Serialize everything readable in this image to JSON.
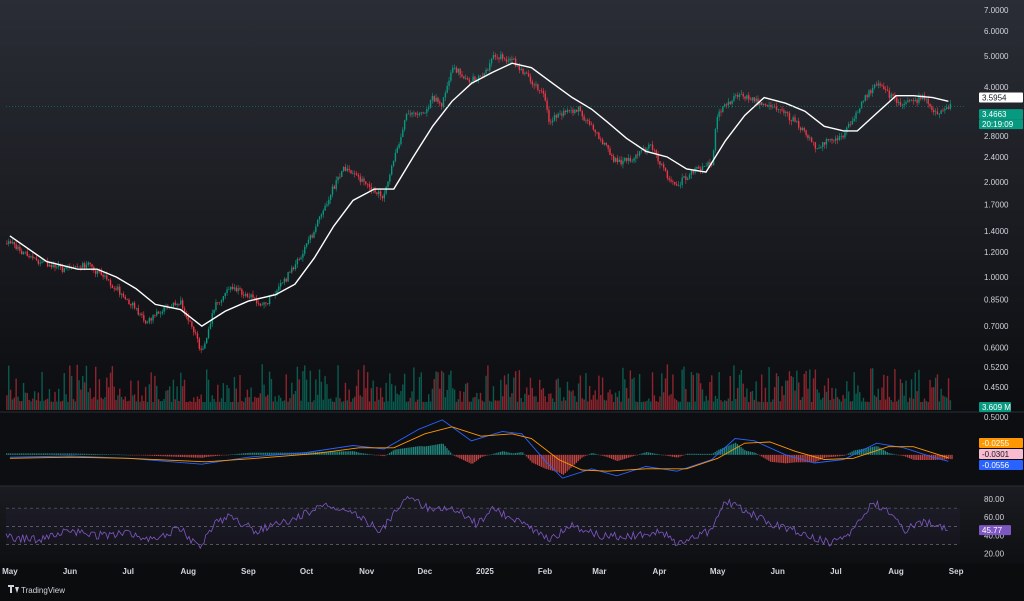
{
  "chart_data": [
    {
      "type": "candlestick",
      "panel": "price",
      "scale": "log",
      "ylim": [
        0.38,
        7.0
      ],
      "yticks": [
        "7.0000",
        "6.0000",
        "5.0000",
        "4.0000",
        "2.8000",
        "2.4000",
        "2.0000",
        "1.7000",
        "1.4000",
        "1.2000",
        "1.0000",
        "0.8500",
        "0.7000",
        "0.6000",
        "0.5200",
        "0.4500",
        "0.3900"
      ],
      "ytick_values": [
        7.0,
        6.0,
        5.0,
        4.0,
        2.8,
        2.4,
        2.0,
        1.7,
        1.4,
        1.2,
        1.0,
        0.85,
        0.7,
        0.6,
        0.52,
        0.45,
        0.39
      ],
      "x_months": [
        "May",
        "Jun",
        "Jul",
        "Aug",
        "Sep",
        "Oct",
        "Nov",
        "Dec",
        "2025",
        "Feb",
        "Mar",
        "Apr",
        "May",
        "Jun",
        "Jul",
        "Aug",
        "Sep"
      ],
      "close_path": [
        [
          "2024-05-01",
          1.28
        ],
        [
          "2024-05-15",
          1.12
        ],
        [
          "2024-06-01",
          1.05
        ],
        [
          "2024-06-10",
          1.1
        ],
        [
          "2024-06-20",
          0.98
        ],
        [
          "2024-07-01",
          0.85
        ],
        [
          "2024-07-10",
          0.72
        ],
        [
          "2024-07-20",
          0.8
        ],
        [
          "2024-07-28",
          0.83
        ],
        [
          "2024-08-05",
          0.65
        ],
        [
          "2024-08-08",
          0.57
        ],
        [
          "2024-08-15",
          0.82
        ],
        [
          "2024-08-22",
          0.92
        ],
        [
          "2024-09-01",
          0.88
        ],
        [
          "2024-09-08",
          0.8
        ],
        [
          "2024-09-20",
          0.98
        ],
        [
          "2024-10-01",
          1.25
        ],
        [
          "2024-10-10",
          1.65
        ],
        [
          "2024-10-20",
          2.25
        ],
        [
          "2024-10-28",
          2.05
        ],
        [
          "2024-11-05",
          1.9
        ],
        [
          "2024-11-10",
          1.8
        ],
        [
          "2024-11-15",
          2.35
        ],
        [
          "2024-11-22",
          3.3
        ],
        [
          "2024-12-01",
          3.3
        ],
        [
          "2024-12-05",
          3.7
        ],
        [
          "2024-12-10",
          3.5
        ],
        [
          "2024-12-15",
          4.6
        ],
        [
          "2024-12-25",
          4.2
        ],
        [
          "2025-01-01",
          4.4
        ],
        [
          "2025-01-05",
          5.0
        ],
        [
          "2025-01-15",
          4.9
        ],
        [
          "2025-01-22",
          4.4
        ],
        [
          "2025-02-01",
          3.7
        ],
        [
          "2025-02-03",
          3.1
        ],
        [
          "2025-02-10",
          3.3
        ],
        [
          "2025-02-18",
          3.4
        ],
        [
          "2025-02-28",
          2.8
        ],
        [
          "2025-03-10",
          2.3
        ],
        [
          "2025-03-20",
          2.4
        ],
        [
          "2025-03-28",
          2.6
        ],
        [
          "2025-04-05",
          2.1
        ],
        [
          "2025-04-10",
          1.95
        ],
        [
          "2025-04-20",
          2.2
        ],
        [
          "2025-04-28",
          2.3
        ],
        [
          "2025-05-01",
          3.3
        ],
        [
          "2025-05-12",
          3.8
        ],
        [
          "2025-05-20",
          3.6
        ],
        [
          "2025-06-01",
          3.4
        ],
        [
          "2025-06-10",
          3.1
        ],
        [
          "2025-06-20",
          2.6
        ],
        [
          "2025-06-28",
          2.7
        ],
        [
          "2025-07-05",
          2.8
        ],
        [
          "2025-07-15",
          3.6
        ],
        [
          "2025-07-22",
          4.1
        ],
        [
          "2025-07-28",
          3.8
        ],
        [
          "2025-08-05",
          3.5
        ],
        [
          "2025-08-15",
          3.7
        ],
        [
          "2025-08-22",
          3.3
        ],
        [
          "2025-08-28",
          3.45
        ]
      ],
      "ma_path": [
        [
          "2024-05-01",
          1.35
        ],
        [
          "2024-05-20",
          1.12
        ],
        [
          "2024-06-05",
          1.06
        ],
        [
          "2024-06-15",
          1.06
        ],
        [
          "2024-06-25",
          1.0
        ],
        [
          "2024-07-05",
          0.92
        ],
        [
          "2024-07-15",
          0.82
        ],
        [
          "2024-07-28",
          0.79
        ],
        [
          "2024-08-08",
          0.7
        ],
        [
          "2024-08-20",
          0.78
        ],
        [
          "2024-09-01",
          0.84
        ],
        [
          "2024-09-15",
          0.88
        ],
        [
          "2024-09-25",
          0.95
        ],
        [
          "2024-10-05",
          1.15
        ],
        [
          "2024-10-15",
          1.45
        ],
        [
          "2024-10-25",
          1.75
        ],
        [
          "2024-11-05",
          1.9
        ],
        [
          "2024-11-15",
          1.9
        ],
        [
          "2024-11-25",
          2.4
        ],
        [
          "2024-12-05",
          3.0
        ],
        [
          "2024-12-15",
          3.6
        ],
        [
          "2024-12-25",
          4.1
        ],
        [
          "2025-01-05",
          4.45
        ],
        [
          "2025-01-15",
          4.75
        ],
        [
          "2025-01-25",
          4.6
        ],
        [
          "2025-02-05",
          4.1
        ],
        [
          "2025-02-15",
          3.7
        ],
        [
          "2025-02-25",
          3.4
        ],
        [
          "2025-03-05",
          3.1
        ],
        [
          "2025-03-15",
          2.75
        ],
        [
          "2025-03-25",
          2.5
        ],
        [
          "2025-04-05",
          2.4
        ],
        [
          "2025-04-15",
          2.2
        ],
        [
          "2025-04-25",
          2.15
        ],
        [
          "2025-05-05",
          2.7
        ],
        [
          "2025-05-15",
          3.25
        ],
        [
          "2025-05-25",
          3.7
        ],
        [
          "2025-06-05",
          3.55
        ],
        [
          "2025-06-15",
          3.35
        ],
        [
          "2025-06-25",
          3.0
        ],
        [
          "2025-07-05",
          2.9
        ],
        [
          "2025-07-12",
          2.9
        ],
        [
          "2025-07-22",
          3.3
        ],
        [
          "2025-08-01",
          3.75
        ],
        [
          "2025-08-10",
          3.75
        ],
        [
          "2025-08-20",
          3.7
        ],
        [
          "2025-08-28",
          3.6
        ]
      ],
      "price_line": 3.4663,
      "last_price": "3.4663",
      "last_price_color": "#089981",
      "countdown": "20:19:09",
      "ma_value": "3.5954",
      "ma_color": "#ffffff",
      "volume_badge": "3.609 M",
      "volume_badge_color": "#089981",
      "up_color": "#089981",
      "down_color": "#f23645"
    },
    {
      "type": "line",
      "panel": "macd",
      "yticks": [
        "0.5000"
      ],
      "ytick_values": [
        0.5
      ],
      "series": [
        {
          "key": "macd",
          "color": "#2962ff",
          "points": [
            [
              "2024-05-01",
              -0.02
            ],
            [
              "2024-06-01",
              -0.01
            ],
            [
              "2024-07-01",
              -0.03
            ],
            [
              "2024-08-08",
              -0.08
            ],
            [
              "2024-09-01",
              -0.02
            ],
            [
              "2024-10-01",
              0.02
            ],
            [
              "2024-10-25",
              0.08
            ],
            [
              "2024-11-10",
              0.05
            ],
            [
              "2024-11-28",
              0.22
            ],
            [
              "2024-12-10",
              0.3
            ],
            [
              "2024-12-25",
              0.12
            ],
            [
              "2025-01-10",
              0.2
            ],
            [
              "2025-01-20",
              0.18
            ],
            [
              "2025-02-01",
              -0.05
            ],
            [
              "2025-02-10",
              -0.2
            ],
            [
              "2025-02-25",
              -0.12
            ],
            [
              "2025-03-10",
              -0.18
            ],
            [
              "2025-03-25",
              -0.1
            ],
            [
              "2025-04-10",
              -0.14
            ],
            [
              "2025-04-28",
              -0.04
            ],
            [
              "2025-05-10",
              0.14
            ],
            [
              "2025-05-20",
              0.12
            ],
            [
              "2025-06-05",
              0.0
            ],
            [
              "2025-06-20",
              -0.07
            ],
            [
              "2025-07-05",
              -0.04
            ],
            [
              "2025-07-22",
              0.1
            ],
            [
              "2025-08-05",
              0.06
            ],
            [
              "2025-08-20",
              -0.02
            ],
            [
              "2025-08-28",
              -0.056
            ]
          ]
        },
        {
          "key": "signal",
          "color": "#ff9800",
          "points": [
            [
              "2024-05-01",
              -0.03
            ],
            [
              "2024-06-01",
              -0.02
            ],
            [
              "2024-07-01",
              -0.03
            ],
            [
              "2024-08-10",
              -0.06
            ],
            [
              "2024-09-05",
              -0.03
            ],
            [
              "2024-10-05",
              0.01
            ],
            [
              "2024-10-28",
              0.06
            ],
            [
              "2024-11-15",
              0.06
            ],
            [
              "2024-12-01",
              0.18
            ],
            [
              "2024-12-15",
              0.24
            ],
            [
              "2024-12-30",
              0.16
            ],
            [
              "2025-01-15",
              0.18
            ],
            [
              "2025-01-25",
              0.14
            ],
            [
              "2025-02-08",
              -0.04
            ],
            [
              "2025-02-20",
              -0.13
            ],
            [
              "2025-03-05",
              -0.14
            ],
            [
              "2025-03-25",
              -0.12
            ],
            [
              "2025-04-15",
              -0.12
            ],
            [
              "2025-05-01",
              -0.03
            ],
            [
              "2025-05-15",
              0.1
            ],
            [
              "2025-05-28",
              0.11
            ],
            [
              "2025-06-10",
              0.03
            ],
            [
              "2025-06-25",
              -0.04
            ],
            [
              "2025-07-10",
              -0.03
            ],
            [
              "2025-07-28",
              0.07
            ],
            [
              "2025-08-10",
              0.07
            ],
            [
              "2025-08-28",
              -0.0255
            ]
          ]
        }
      ],
      "histogram_values": [
        "-0.0255",
        "-0.0301",
        "-0.0556"
      ],
      "badge_colors": [
        "#ff9800",
        "#f8bbd0",
        "#2962ff"
      ]
    },
    {
      "type": "line",
      "panel": "rsi",
      "ylim": [
        15,
        90
      ],
      "yticks": [
        "80.00",
        "60.00",
        "40.00",
        "20.00"
      ],
      "ytick_values": [
        80,
        60,
        40,
        20
      ],
      "bands": [
        70,
        50,
        30
      ],
      "current": "45.77",
      "color": "#7e57c2",
      "points": [
        [
          "2024-05-01",
          38
        ],
        [
          "2024-05-15",
          35
        ],
        [
          "2024-06-01",
          45
        ],
        [
          "2024-06-15",
          40
        ],
        [
          "2024-07-01",
          42
        ],
        [
          "2024-07-15",
          36
        ],
        [
          "2024-07-28",
          48
        ],
        [
          "2024-08-07",
          25
        ],
        [
          "2024-08-15",
          55
        ],
        [
          "2024-08-22",
          60
        ],
        [
          "2024-09-05",
          45
        ],
        [
          "2024-09-25",
          58
        ],
        [
          "2024-10-10",
          75
        ],
        [
          "2024-10-25",
          65
        ],
        [
          "2024-11-08",
          45
        ],
        [
          "2024-11-22",
          82
        ],
        [
          "2024-12-05",
          68
        ],
        [
          "2024-12-15",
          72
        ],
        [
          "2024-12-28",
          52
        ],
        [
          "2025-01-05",
          68
        ],
        [
          "2025-01-20",
          55
        ],
        [
          "2025-02-03",
          35
        ],
        [
          "2025-02-15",
          50
        ],
        [
          "2025-03-01",
          40
        ],
        [
          "2025-03-15",
          38
        ],
        [
          "2025-04-01",
          45
        ],
        [
          "2025-04-10",
          32
        ],
        [
          "2025-04-28",
          45
        ],
        [
          "2025-05-05",
          78
        ],
        [
          "2025-05-15",
          68
        ],
        [
          "2025-06-01",
          50
        ],
        [
          "2025-06-15",
          42
        ],
        [
          "2025-06-28",
          32
        ],
        [
          "2025-07-10",
          45
        ],
        [
          "2025-07-20",
          76
        ],
        [
          "2025-07-28",
          68
        ],
        [
          "2025-08-05",
          45
        ],
        [
          "2025-08-15",
          55
        ],
        [
          "2025-08-28",
          45.77
        ]
      ]
    }
  ],
  "branding": {
    "text": "TradingView"
  }
}
